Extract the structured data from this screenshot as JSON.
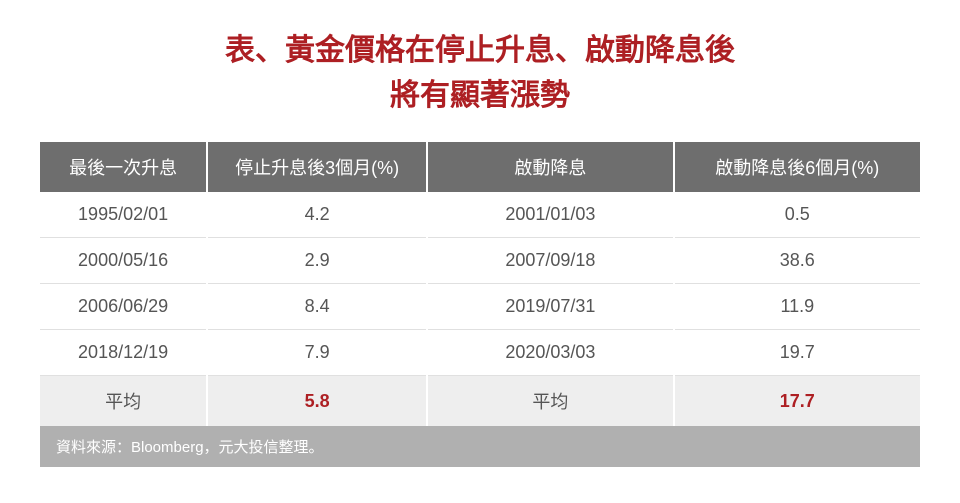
{
  "title": {
    "line1": "表、黃金價格在停止升息、啟動降息後",
    "line2": "將有顯著漲勢",
    "color": "#ad1f23",
    "fontsize": 30
  },
  "table": {
    "header_bg": "#6e6e6e",
    "header_fontsize": 18,
    "cell_fontsize": 18,
    "cell_color": "#555555",
    "avg_bg": "#eeeeee",
    "avg_value_color": "#ad1f23",
    "columns": [
      "最後一次升息",
      "停止升息後3個月(%)",
      "啟動降息",
      "啟動降息後6個月(%)"
    ],
    "col_widths": [
      "19%",
      "25%",
      "28%",
      "28%"
    ],
    "rows": [
      [
        "1995/02/01",
        "4.2",
        "2001/01/03",
        "0.5"
      ],
      [
        "2000/05/16",
        "2.9",
        "2007/09/18",
        "38.6"
      ],
      [
        "2006/06/29",
        "8.4",
        "2019/07/31",
        "11.9"
      ],
      [
        "2018/12/19",
        "7.9",
        "2020/03/03",
        "19.7"
      ]
    ],
    "avg_row": [
      "平均",
      "5.8",
      "平均",
      "17.7"
    ],
    "avg_value_cols": [
      1,
      3
    ]
  },
  "source": {
    "text": "資料來源：Bloomberg，元大投信整理。",
    "bg": "#b0b0b0",
    "fontsize": 15
  }
}
